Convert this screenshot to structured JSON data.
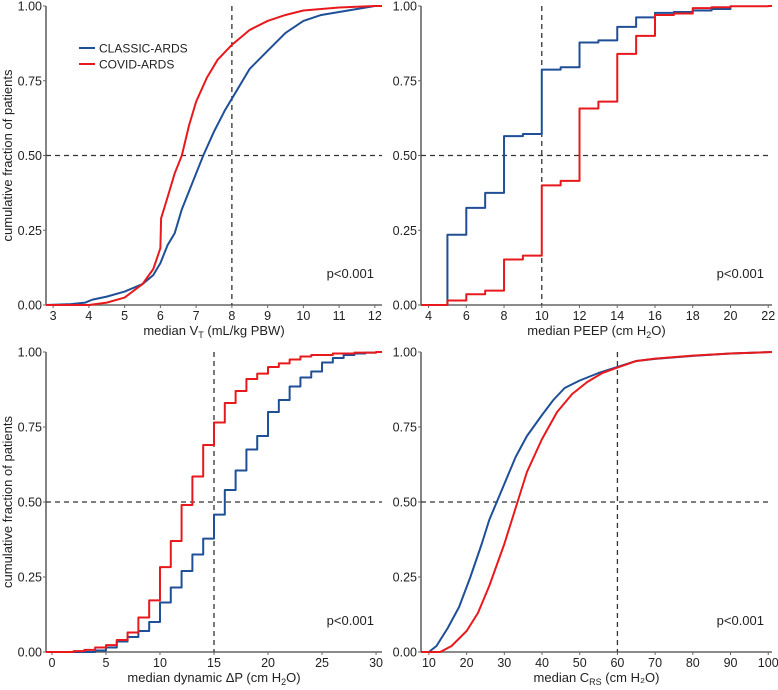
{
  "chart_data": {
    "type": "line",
    "colors": {
      "CLASSIC-ARDS": "#1f4f96",
      "COVID-ARDS": "#e8191c",
      "axis": "#666666",
      "ref": "#333333"
    },
    "legend": {
      "placement": "top-left of first panel",
      "entries": [
        "CLASSIC-ARDS",
        "COVID-ARDS"
      ]
    },
    "ylabel": "cumulative fraction of patients",
    "panels": [
      {
        "id": "vt",
        "xlabel": {
          "pre": "median V",
          "sub": "T",
          "post": " (mL/kg PBW)"
        },
        "xlim": [
          2.8,
          12.2
        ],
        "ylim": [
          0,
          1
        ],
        "xticks": [
          3,
          4,
          5,
          6,
          7,
          8,
          9,
          10,
          11,
          12
        ],
        "yticks": [
          "0.00",
          "0.25",
          "0.50",
          "0.75",
          "1.00"
        ],
        "ref_x": 8,
        "ref_y": 0.5,
        "annotation": "p<0.001",
        "step": false,
        "series": [
          {
            "name": "CLASSIC-ARDS",
            "points": [
              [
                2.8,
                0
              ],
              [
                3.5,
                0.003
              ],
              [
                3.9,
                0.008
              ],
              [
                4.1,
                0.018
              ],
              [
                4.5,
                0.028
              ],
              [
                5,
                0.045
              ],
              [
                5.5,
                0.07
              ],
              [
                5.8,
                0.1
              ],
              [
                6,
                0.14
              ],
              [
                6.2,
                0.2
              ],
              [
                6.4,
                0.24
              ],
              [
                6.6,
                0.32
              ],
              [
                6.8,
                0.38
              ],
              [
                7,
                0.44
              ],
              [
                7.2,
                0.5
              ],
              [
                7.5,
                0.58
              ],
              [
                7.8,
                0.65
              ],
              [
                8,
                0.69
              ],
              [
                8.5,
                0.79
              ],
              [
                9,
                0.85
              ],
              [
                9.5,
                0.91
              ],
              [
                10,
                0.95
              ],
              [
                10.5,
                0.97
              ],
              [
                11,
                0.98
              ],
              [
                11.5,
                0.99
              ],
              [
                12,
                1.0
              ],
              [
                12.2,
                1.0
              ]
            ]
          },
          {
            "name": "COVID-ARDS",
            "points": [
              [
                2.8,
                0
              ],
              [
                4,
                0.0
              ],
              [
                4.5,
                0.008
              ],
              [
                5,
                0.025
              ],
              [
                5.5,
                0.07
              ],
              [
                5.8,
                0.12
              ],
              [
                6,
                0.19
              ],
              [
                6.02,
                0.29
              ],
              [
                6.2,
                0.36
              ],
              [
                6.4,
                0.44
              ],
              [
                6.6,
                0.5
              ],
              [
                6.8,
                0.6
              ],
              [
                7,
                0.68
              ],
              [
                7.3,
                0.76
              ],
              [
                7.6,
                0.82
              ],
              [
                8,
                0.87
              ],
              [
                8.5,
                0.92
              ],
              [
                9,
                0.95
              ],
              [
                9.5,
                0.97
              ],
              [
                10,
                0.985
              ],
              [
                11,
                0.995
              ],
              [
                12,
                1
              ],
              [
                12.2,
                1
              ]
            ]
          }
        ]
      },
      {
        "id": "peep",
        "xlabel": {
          "pre": "median PEEP (cm H",
          "sub": "2",
          "post": "O)"
        },
        "xlim": [
          3.6,
          22.2
        ],
        "ylim": [
          0,
          1
        ],
        "xticks": [
          4,
          6,
          8,
          10,
          12,
          14,
          16,
          18,
          20,
          22
        ],
        "yticks": [
          "0.00",
          "0.25",
          "0.50",
          "0.75",
          "1.00"
        ],
        "ref_x": 10,
        "ref_y": 0.5,
        "annotation": "p<0.001",
        "step": true,
        "series": [
          {
            "name": "CLASSIC-ARDS",
            "points": [
              [
                3.6,
                0
              ],
              [
                5,
                0.235
              ],
              [
                6,
                0.325
              ],
              [
                7,
                0.375
              ],
              [
                8,
                0.565
              ],
              [
                9,
                0.572
              ],
              [
                10,
                0.787
              ],
              [
                11,
                0.795
              ],
              [
                12,
                0.878
              ],
              [
                13,
                0.885
              ],
              [
                14,
                0.93
              ],
              [
                15,
                0.962
              ],
              [
                16,
                0.977
              ],
              [
                17,
                0.98
              ],
              [
                18,
                0.985
              ],
              [
                19,
                0.99
              ],
              [
                20,
                0.995
              ]
            ]
          },
          {
            "name": "COVID-ARDS",
            "points": [
              [
                3.6,
                0
              ],
              [
                5,
                0.015
              ],
              [
                6,
                0.036
              ],
              [
                7,
                0.048
              ],
              [
                8,
                0.152
              ],
              [
                9,
                0.165
              ],
              [
                10,
                0.4
              ],
              [
                11,
                0.415
              ],
              [
                12,
                0.657
              ],
              [
                13,
                0.68
              ],
              [
                14,
                0.84
              ],
              [
                15,
                0.9
              ],
              [
                16,
                0.97
              ],
              [
                17,
                0.975
              ],
              [
                18,
                0.993
              ],
              [
                19,
                0.996
              ],
              [
                20,
                0.999
              ],
              [
                22,
                1.0
              ],
              [
                22.2,
                1.0
              ]
            ]
          }
        ]
      },
      {
        "id": "dp",
        "xlabel": {
          "pre": "median dynamic ΔP (cm H",
          "sub": "2",
          "post": "O)"
        },
        "xlim": [
          -0.55,
          30.55
        ],
        "ylim": [
          0,
          1
        ],
        "xticks": [
          0,
          5,
          10,
          15,
          20,
          25,
          30
        ],
        "yticks": [
          "0.00",
          "0.25",
          "0.50",
          "0.75",
          "1.00"
        ],
        "ref_x": 15,
        "ref_y": 0.5,
        "annotation": "p<0.001",
        "step": true,
        "series": [
          {
            "name": "CLASSIC-ARDS",
            "points": [
              [
                -0.55,
                0
              ],
              [
                4,
                0.005
              ],
              [
                5,
                0.015
              ],
              [
                6,
                0.035
              ],
              [
                7,
                0.05
              ],
              [
                8,
                0.07
              ],
              [
                9,
                0.1
              ],
              [
                10,
                0.165
              ],
              [
                11,
                0.215
              ],
              [
                12,
                0.27
              ],
              [
                13,
                0.325
              ],
              [
                14,
                0.378
              ],
              [
                15,
                0.458
              ],
              [
                16,
                0.54
              ],
              [
                17,
                0.605
              ],
              [
                18,
                0.675
              ],
              [
                19,
                0.72
              ],
              [
                20,
                0.8
              ],
              [
                21,
                0.84
              ],
              [
                22,
                0.885
              ],
              [
                23,
                0.915
              ],
              [
                24,
                0.935
              ],
              [
                25,
                0.965
              ],
              [
                26,
                0.98
              ],
              [
                27,
                0.99
              ],
              [
                28,
                0.995
              ],
              [
                29,
                0.998
              ],
              [
                30,
                1
              ]
            ]
          },
          {
            "name": "COVID-ARDS",
            "points": [
              [
                -0.55,
                0
              ],
              [
                2,
                0.003
              ],
              [
                3,
                0.007
              ],
              [
                4,
                0.015
              ],
              [
                5,
                0.023
              ],
              [
                6,
                0.04
              ],
              [
                7,
                0.065
              ],
              [
                8,
                0.115
              ],
              [
                9,
                0.172
              ],
              [
                10,
                0.283
              ],
              [
                11,
                0.37
              ],
              [
                12,
                0.49
              ],
              [
                13,
                0.585
              ],
              [
                14,
                0.69
              ],
              [
                15,
                0.765
              ],
              [
                16,
                0.83
              ],
              [
                17,
                0.87
              ],
              [
                18,
                0.91
              ],
              [
                19,
                0.928
              ],
              [
                20,
                0.95
              ],
              [
                21,
                0.962
              ],
              [
                22,
                0.975
              ],
              [
                23,
                0.985
              ],
              [
                24,
                0.99
              ],
              [
                26,
                0.995
              ],
              [
                28,
                0.998
              ],
              [
                30,
                1
              ],
              [
                30.55,
                1
              ]
            ]
          }
        ]
      },
      {
        "id": "crs",
        "xlabel": {
          "pre": "median C",
          "sub": "RS",
          "post": " (cm H₂O)"
        },
        "xlim": [
          7.9,
          101
        ],
        "ylim": [
          0,
          1
        ],
        "xticks": [
          10,
          20,
          30,
          40,
          50,
          60,
          70,
          80,
          90,
          100
        ],
        "yticks": [
          "0.00",
          "0.25",
          "0.50",
          "0.75",
          "1.00"
        ],
        "ref_x": 60,
        "ref_y": 0.5,
        "annotation": "p<0.001",
        "step": false,
        "series": [
          {
            "name": "CLASSIC-ARDS",
            "points": [
              [
                7.9,
                0
              ],
              [
                10,
                0
              ],
              [
                12,
                0.02
              ],
              [
                15,
                0.08
              ],
              [
                18,
                0.15
              ],
              [
                21,
                0.25
              ],
              [
                24,
                0.36
              ],
              [
                26,
                0.44
              ],
              [
                28,
                0.5
              ],
              [
                30,
                0.56
              ],
              [
                33,
                0.65
              ],
              [
                36,
                0.72
              ],
              [
                40,
                0.79
              ],
              [
                43,
                0.84
              ],
              [
                46,
                0.88
              ],
              [
                50,
                0.905
              ],
              [
                55,
                0.93
              ],
              [
                60,
                0.95
              ],
              [
                65,
                0.97
              ],
              [
                70,
                0.977
              ],
              [
                80,
                0.987
              ],
              [
                90,
                0.995
              ],
              [
                101,
                1
              ]
            ]
          },
          {
            "name": "COVID-ARDS",
            "points": [
              [
                7.9,
                0
              ],
              [
                13,
                0
              ],
              [
                16,
                0.02
              ],
              [
                20,
                0.07
              ],
              [
                23,
                0.13
              ],
              [
                26,
                0.22
              ],
              [
                30,
                0.36
              ],
              [
                33,
                0.48
              ],
              [
                36,
                0.6
              ],
              [
                40,
                0.71
              ],
              [
                44,
                0.8
              ],
              [
                48,
                0.86
              ],
              [
                52,
                0.9
              ],
              [
                56,
                0.93
              ],
              [
                60,
                0.948
              ],
              [
                65,
                0.97
              ],
              [
                70,
                0.978
              ],
              [
                80,
                0.988
              ],
              [
                90,
                0.995
              ],
              [
                101,
                1
              ]
            ]
          }
        ]
      }
    ]
  }
}
